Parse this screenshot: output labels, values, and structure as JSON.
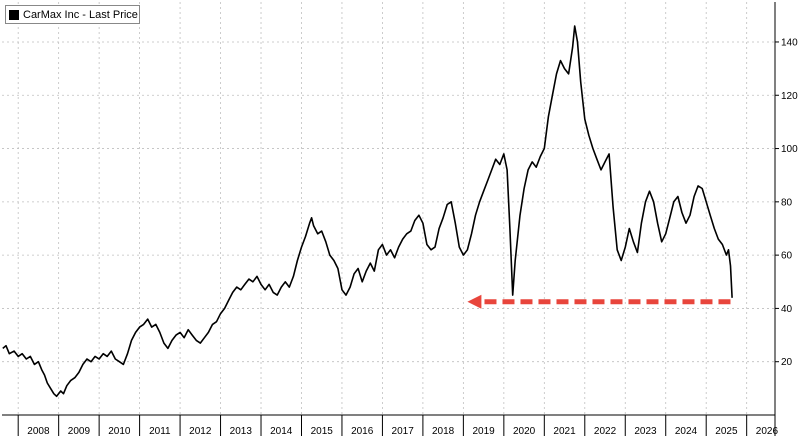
{
  "chart_data": {
    "type": "line",
    "title": "",
    "xlabel": "",
    "ylabel": "",
    "legend": {
      "placement": "top-left",
      "entries": [
        "CarMax Inc - Last Price"
      ]
    },
    "grid": true,
    "xlim": [
      2007.6,
      2026.7
    ],
    "ylim": [
      0,
      155
    ],
    "y_ticks": [
      20,
      40,
      60,
      80,
      100,
      120,
      140
    ],
    "x_tick_labels": [
      "2008",
      "2009",
      "2010",
      "2011",
      "2012",
      "2013",
      "2014",
      "2015",
      "2016",
      "2017",
      "2018",
      "2019",
      "2020",
      "2021",
      "2022",
      "2023",
      "2024",
      "2025",
      "2026"
    ],
    "colors": {
      "line": "#000000",
      "arrow": "#e8453c",
      "grid": "#bfbfbf"
    },
    "annotations": [
      {
        "type": "dashed-arrow",
        "direction": "left",
        "from_x": 2025.6,
        "to_x": 2019.1,
        "y": 42.5,
        "color": "#e8453c"
      }
    ],
    "series": [
      {
        "name": "CarMax Inc - Last Price",
        "points": [
          [
            2007.62,
            25
          ],
          [
            2007.7,
            26
          ],
          [
            2007.78,
            23
          ],
          [
            2007.9,
            24
          ],
          [
            2008.0,
            22
          ],
          [
            2008.1,
            23
          ],
          [
            2008.2,
            21
          ],
          [
            2008.3,
            22
          ],
          [
            2008.4,
            19
          ],
          [
            2008.5,
            20
          ],
          [
            2008.58,
            17
          ],
          [
            2008.65,
            15
          ],
          [
            2008.72,
            12
          ],
          [
            2008.8,
            10
          ],
          [
            2008.88,
            8
          ],
          [
            2008.95,
            7
          ],
          [
            2009.05,
            9
          ],
          [
            2009.12,
            8
          ],
          [
            2009.2,
            11
          ],
          [
            2009.3,
            13
          ],
          [
            2009.4,
            14
          ],
          [
            2009.5,
            16
          ],
          [
            2009.6,
            19
          ],
          [
            2009.7,
            21
          ],
          [
            2009.8,
            20
          ],
          [
            2009.9,
            22
          ],
          [
            2010.0,
            21
          ],
          [
            2010.1,
            23
          ],
          [
            2010.2,
            22
          ],
          [
            2010.3,
            24
          ],
          [
            2010.4,
            21
          ],
          [
            2010.5,
            20
          ],
          [
            2010.6,
            19
          ],
          [
            2010.7,
            23
          ],
          [
            2010.8,
            28
          ],
          [
            2010.9,
            31
          ],
          [
            2011.0,
            33
          ],
          [
            2011.1,
            34
          ],
          [
            2011.2,
            36
          ],
          [
            2011.3,
            33
          ],
          [
            2011.4,
            34
          ],
          [
            2011.5,
            31
          ],
          [
            2011.6,
            27
          ],
          [
            2011.7,
            25
          ],
          [
            2011.8,
            28
          ],
          [
            2011.9,
            30
          ],
          [
            2012.0,
            31
          ],
          [
            2012.1,
            29
          ],
          [
            2012.2,
            32
          ],
          [
            2012.3,
            30
          ],
          [
            2012.4,
            28
          ],
          [
            2012.5,
            27
          ],
          [
            2012.6,
            29
          ],
          [
            2012.7,
            31
          ],
          [
            2012.8,
            34
          ],
          [
            2012.9,
            35
          ],
          [
            2013.0,
            38
          ],
          [
            2013.1,
            40
          ],
          [
            2013.2,
            43
          ],
          [
            2013.3,
            46
          ],
          [
            2013.4,
            48
          ],
          [
            2013.5,
            47
          ],
          [
            2013.6,
            49
          ],
          [
            2013.7,
            51
          ],
          [
            2013.8,
            50
          ],
          [
            2013.9,
            52
          ],
          [
            2014.0,
            49
          ],
          [
            2014.1,
            47
          ],
          [
            2014.2,
            49
          ],
          [
            2014.3,
            46
          ],
          [
            2014.4,
            45
          ],
          [
            2014.5,
            48
          ],
          [
            2014.6,
            50
          ],
          [
            2014.7,
            48
          ],
          [
            2014.8,
            52
          ],
          [
            2014.9,
            58
          ],
          [
            2015.0,
            63
          ],
          [
            2015.1,
            67
          ],
          [
            2015.2,
            72
          ],
          [
            2015.25,
            74
          ],
          [
            2015.3,
            71
          ],
          [
            2015.4,
            68
          ],
          [
            2015.5,
            69
          ],
          [
            2015.6,
            65
          ],
          [
            2015.7,
            60
          ],
          [
            2015.8,
            58
          ],
          [
            2015.9,
            55
          ],
          [
            2016.0,
            47
          ],
          [
            2016.1,
            45
          ],
          [
            2016.2,
            48
          ],
          [
            2016.3,
            53
          ],
          [
            2016.4,
            55
          ],
          [
            2016.5,
            50
          ],
          [
            2016.6,
            54
          ],
          [
            2016.7,
            57
          ],
          [
            2016.8,
            54
          ],
          [
            2016.9,
            62
          ],
          [
            2017.0,
            64
          ],
          [
            2017.1,
            60
          ],
          [
            2017.2,
            62
          ],
          [
            2017.3,
            59
          ],
          [
            2017.4,
            63
          ],
          [
            2017.5,
            66
          ],
          [
            2017.6,
            68
          ],
          [
            2017.7,
            69
          ],
          [
            2017.8,
            73
          ],
          [
            2017.9,
            75
          ],
          [
            2018.0,
            72
          ],
          [
            2018.1,
            64
          ],
          [
            2018.2,
            62
          ],
          [
            2018.3,
            63
          ],
          [
            2018.4,
            70
          ],
          [
            2018.5,
            74
          ],
          [
            2018.6,
            79
          ],
          [
            2018.7,
            80
          ],
          [
            2018.8,
            72
          ],
          [
            2018.9,
            63
          ],
          [
            2019.0,
            60
          ],
          [
            2019.1,
            62
          ],
          [
            2019.2,
            68
          ],
          [
            2019.3,
            75
          ],
          [
            2019.4,
            80
          ],
          [
            2019.5,
            84
          ],
          [
            2019.6,
            88
          ],
          [
            2019.7,
            92
          ],
          [
            2019.8,
            96
          ],
          [
            2019.9,
            94
          ],
          [
            2020.0,
            98
          ],
          [
            2020.08,
            92
          ],
          [
            2020.15,
            70
          ],
          [
            2020.22,
            45
          ],
          [
            2020.28,
            58
          ],
          [
            2020.4,
            75
          ],
          [
            2020.5,
            85
          ],
          [
            2020.6,
            92
          ],
          [
            2020.7,
            95
          ],
          [
            2020.8,
            93
          ],
          [
            2020.9,
            97
          ],
          [
            2021.0,
            100
          ],
          [
            2021.1,
            112
          ],
          [
            2021.2,
            120
          ],
          [
            2021.3,
            128
          ],
          [
            2021.4,
            133
          ],
          [
            2021.5,
            130
          ],
          [
            2021.6,
            128
          ],
          [
            2021.7,
            138
          ],
          [
            2021.75,
            146
          ],
          [
            2021.82,
            140
          ],
          [
            2021.9,
            125
          ],
          [
            2022.0,
            111
          ],
          [
            2022.1,
            105
          ],
          [
            2022.2,
            100
          ],
          [
            2022.3,
            96
          ],
          [
            2022.4,
            92
          ],
          [
            2022.5,
            95
          ],
          [
            2022.6,
            98
          ],
          [
            2022.7,
            78
          ],
          [
            2022.8,
            62
          ],
          [
            2022.9,
            58
          ],
          [
            2023.0,
            63
          ],
          [
            2023.1,
            70
          ],
          [
            2023.2,
            65
          ],
          [
            2023.3,
            61
          ],
          [
            2023.4,
            72
          ],
          [
            2023.5,
            80
          ],
          [
            2023.6,
            84
          ],
          [
            2023.7,
            80
          ],
          [
            2023.8,
            72
          ],
          [
            2023.9,
            65
          ],
          [
            2024.0,
            68
          ],
          [
            2024.1,
            74
          ],
          [
            2024.2,
            80
          ],
          [
            2024.3,
            82
          ],
          [
            2024.4,
            76
          ],
          [
            2024.5,
            72
          ],
          [
            2024.6,
            75
          ],
          [
            2024.7,
            82
          ],
          [
            2024.8,
            86
          ],
          [
            2024.9,
            85
          ],
          [
            2025.0,
            80
          ],
          [
            2025.1,
            75
          ],
          [
            2025.2,
            70
          ],
          [
            2025.3,
            66
          ],
          [
            2025.4,
            64
          ],
          [
            2025.5,
            60
          ],
          [
            2025.55,
            62
          ],
          [
            2025.6,
            56
          ],
          [
            2025.64,
            44
          ]
        ]
      }
    ]
  }
}
